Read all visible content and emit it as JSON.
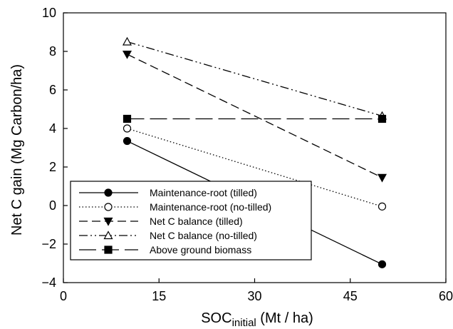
{
  "chart_data": {
    "type": "line",
    "title": "",
    "xlabel": {
      "main": "SOC",
      "sub": "initial",
      "unit": " (Mt / ha)"
    },
    "ylabel": "Net C gain (Mg Carbon/ha)",
    "xlim": [
      0,
      60
    ],
    "ylim": [
      -4,
      10
    ],
    "xticks": [
      0,
      15,
      30,
      45,
      60
    ],
    "yticks": [
      -4,
      -2,
      0,
      2,
      4,
      6,
      8,
      10
    ],
    "grid": false,
    "legend_position": "bottom-left",
    "series": [
      {
        "name": "Maintenance-root (tilled)",
        "x": [
          10,
          50
        ],
        "y": [
          3.35,
          -3.05
        ],
        "dash": "",
        "marker": "circle",
        "fill": "#000000"
      },
      {
        "name": "Maintenance-root (no-tilled)",
        "x": [
          10,
          50
        ],
        "y": [
          4.0,
          -0.05
        ],
        "dash": "1.5,3",
        "marker": "circle",
        "fill": "#ffffff"
      },
      {
        "name": "Net C balance (tilled)",
        "x": [
          10,
          50
        ],
        "y": [
          7.85,
          1.45
        ],
        "dash": "12,6",
        "marker": "triangle-down",
        "fill": "#000000"
      },
      {
        "name": "Net C balance (no-tilled)",
        "x": [
          10,
          50
        ],
        "y": [
          8.5,
          4.65
        ],
        "dash": "12,4,2,4,2,4",
        "marker": "triangle-up",
        "fill": "#ffffff"
      },
      {
        "name": "Above ground biomass",
        "x": [
          10,
          50
        ],
        "y": [
          4.5,
          4.5
        ],
        "dash": "24,8",
        "marker": "square",
        "fill": "#000000"
      }
    ]
  }
}
